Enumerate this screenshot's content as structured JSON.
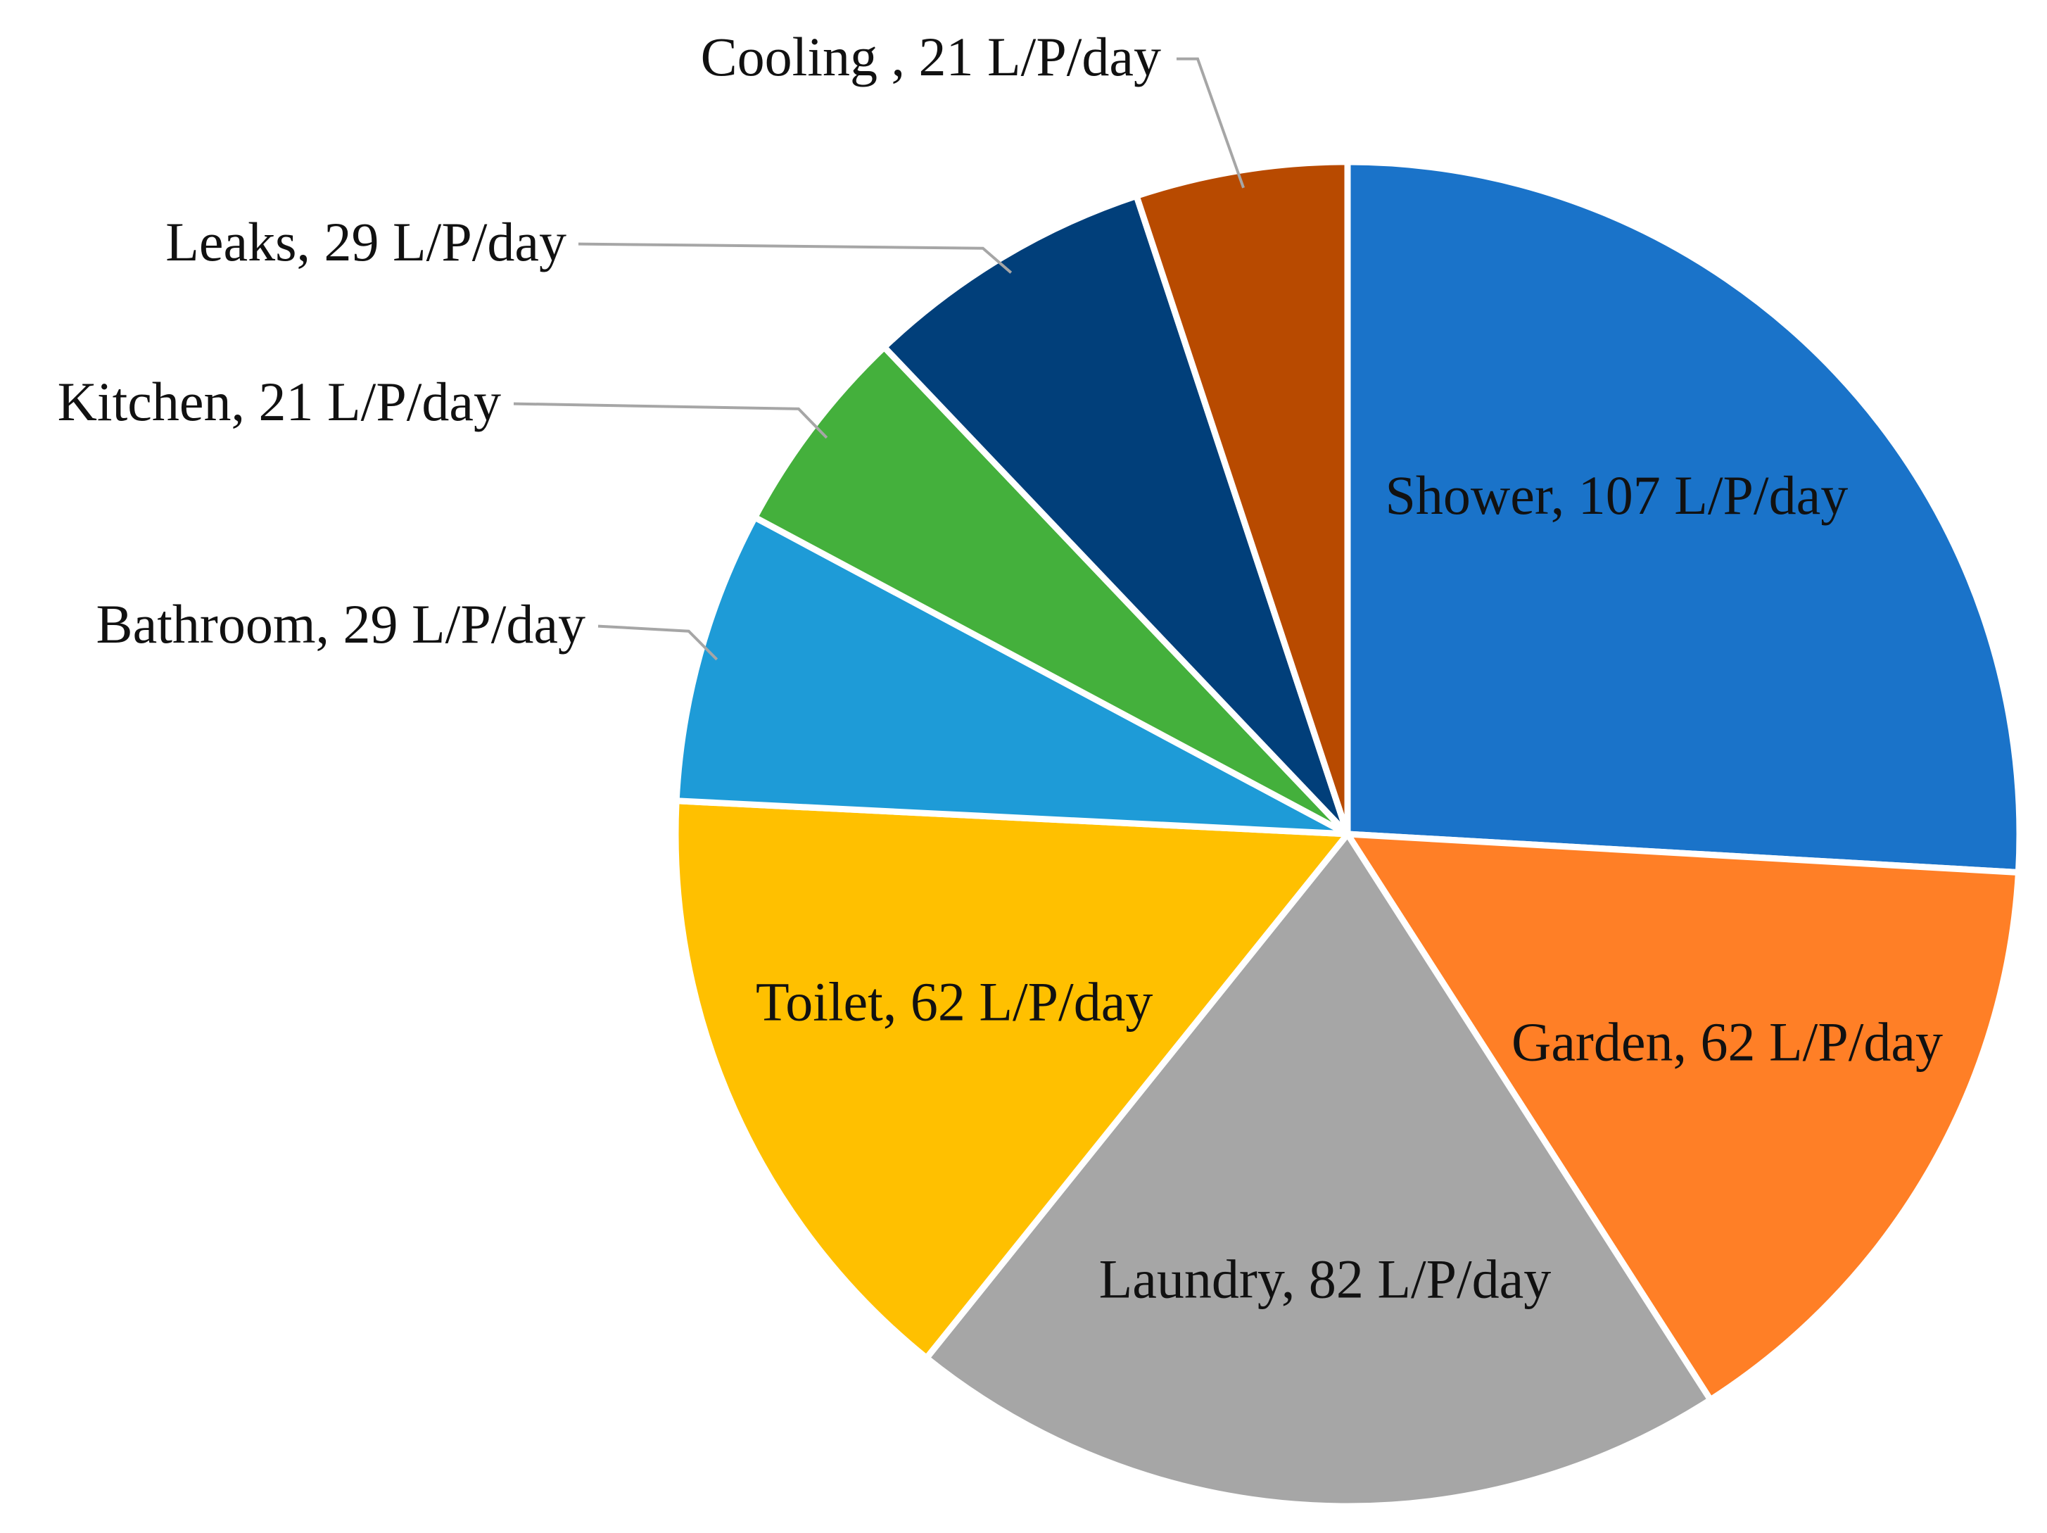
{
  "chart_data": {
    "type": "pie",
    "title": "",
    "unit": "L/P/day",
    "slices": [
      {
        "name": "Shower",
        "value": 107,
        "label": "Shower, 107 L/P/day",
        "color": "#1A73C9",
        "label_position": "inside"
      },
      {
        "name": "Garden",
        "value": 62,
        "label": "Garden, 62 L/P/day",
        "color": "#FF7F26",
        "label_position": "inside"
      },
      {
        "name": "Laundry",
        "value": 82,
        "label": "Laundry, 82 L/P/day",
        "color": "#A6A6A6",
        "label_position": "inside"
      },
      {
        "name": "Toilet",
        "value": 62,
        "label": "Toilet, 62 L/P/day",
        "color": "#FFC000",
        "label_position": "inside"
      },
      {
        "name": "Bathroom",
        "value": 29,
        "label": "Bathroom, 29 L/P/day",
        "color": "#1E9BD7",
        "label_position": "outside"
      },
      {
        "name": "Kitchen",
        "value": 21,
        "label": "Kitchen, 21 L/P/day",
        "color": "#44B03C",
        "label_position": "outside"
      },
      {
        "name": "Leaks",
        "value": 29,
        "label": "Leaks, 29 L/P/day",
        "color": "#013F7A",
        "label_position": "outside"
      },
      {
        "name": "Cooling",
        "value": 21,
        "label": "Cooling , 21 L/P/day",
        "color": "#B84A00",
        "label_position": "outside"
      }
    ],
    "legend": "none",
    "slice_border_color": "#ffffff",
    "leader_line_color": "#A6A6A6"
  }
}
